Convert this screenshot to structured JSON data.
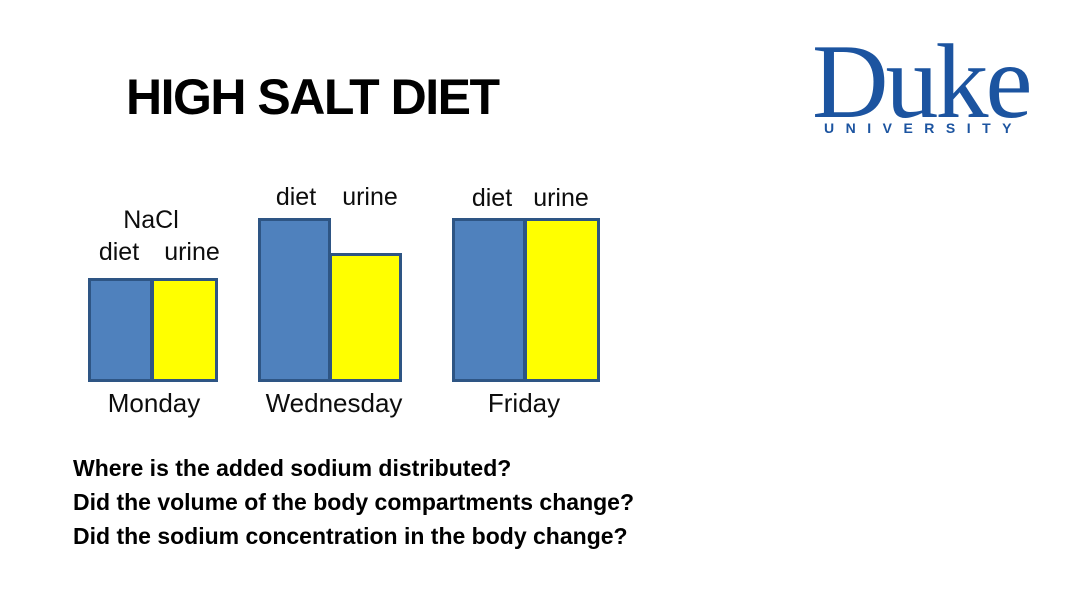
{
  "slide": {
    "title": "HIGH SALT DIET",
    "background_color": "#FFFFFF",
    "logo": {
      "wordmark": "Duke",
      "subtext": "UNIVERSITY",
      "color": "#1C54A0"
    },
    "questions": [
      "Where is the added sodium distributed?",
      "Did the volume of the body compartments change?",
      "Did the sodium concentration in the body change?"
    ]
  },
  "chart_data": {
    "type": "bar",
    "title": "NaCl",
    "description": "Schematic paired bars comparing NaCl amount in diet versus urine on three days; no numeric axis or gridlines shown.",
    "categories": [
      "Monday",
      "Wednesday",
      "Friday"
    ],
    "series": [
      {
        "name": "diet",
        "color": "#4F81BD",
        "values": [
          1.0,
          1.58,
          1.58
        ]
      },
      {
        "name": "urine",
        "color": "#FFFF00",
        "values": [
          1.0,
          1.24,
          1.58
        ]
      }
    ],
    "value_scale": "relative units, Monday = 1.0 (bars unlabeled in figure)",
    "bar_border_color": "#2E5584",
    "grid": false,
    "legend_position": "column labels above each bar pair",
    "x_axis_labels_below": true
  }
}
